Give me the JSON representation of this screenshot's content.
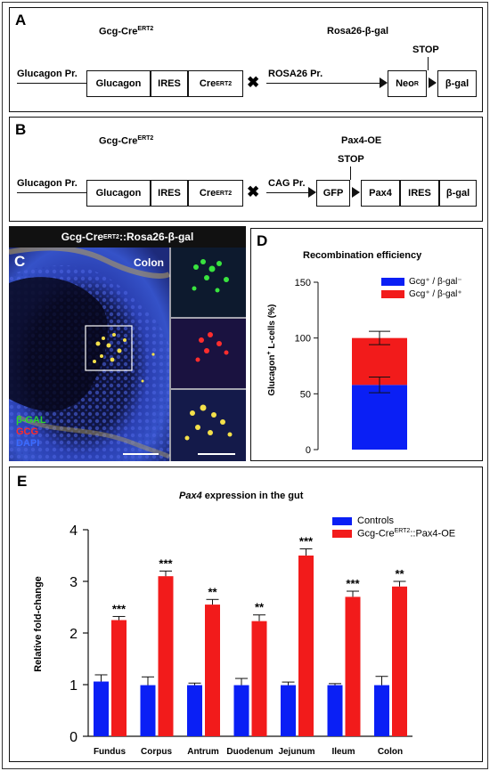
{
  "panelA": {
    "label": "A",
    "title_left_main": "Gcg-Cre",
    "title_left_sup": "ERT2",
    "title_right": "Rosa26-β-gal",
    "promoter1": "Glucagon Pr.",
    "box_glucagon": "Glucagon",
    "box_ires": "IRES",
    "box_cre": "Cre",
    "box_cre_sup": "ERT2",
    "promoter2": "ROSA26 Pr.",
    "stop": "STOP",
    "box_neo": "Neo",
    "box_neo_sup": "R",
    "box_bgal": "β-gal"
  },
  "panelB": {
    "label": "B",
    "title_left_main": "Gcg-Cre",
    "title_left_sup": "ERT2",
    "title_right": "Pax4-OE",
    "promoter1": "Glucagon Pr.",
    "box_glucagon": "Glucagon",
    "box_ires": "IRES",
    "box_cre": "Cre",
    "box_cre_sup": "ERT2",
    "promoter2": "CAG Pr.",
    "stop": "STOP",
    "box_gfp": "GFP",
    "box_pax4": "Pax4",
    "box_ires2": "IRES",
    "box_bgal": "β-gal"
  },
  "panelC": {
    "label": "C",
    "header_main": "Gcg-Cre",
    "header_sup": "ERT2",
    "header_rest": "::Rosa26-β-gal",
    "tissue": "Colon",
    "legend": [
      "β-GAL",
      "GCG",
      "DAPI"
    ],
    "legend_colors": [
      "#2bd52b",
      "#ff2a2a",
      "#3a6bff"
    ]
  },
  "panelD": {
    "label": "D",
    "title": "Recombination efficiency",
    "ylabel_main": "Glucagon",
    "ylabel_sup": "+",
    "ylabel_rest": " L-cells (%)",
    "legend": [
      "Gcg⁺ / β-gal⁻",
      "Gcg⁺ / β-gal⁺"
    ],
    "colors": [
      "#0a1ff5",
      "#f21b1b"
    ]
  },
  "panelE": {
    "label": "E",
    "title_italic": "Pax4",
    "title_rest": " expression in the gut",
    "ylabel": "Relative fold-change",
    "legend_controls": "Controls",
    "legend_oe_main": "Gcg-Cre",
    "legend_oe_sup": "ERT2",
    "legend_oe_rest": "::Pax4-OE",
    "colors": [
      "#0a1ff5",
      "#f21b1b"
    ]
  },
  "chart_data": [
    {
      "type": "bar",
      "title": "Recombination efficiency",
      "ylabel": "Glucagon+ L-cells (%)",
      "ylim": [
        0,
        150
      ],
      "yticks": [
        0,
        50,
        100,
        150
      ],
      "stacked": true,
      "series": [
        {
          "name": "Gcg⁺ / β-gal⁻",
          "values": [
            58
          ],
          "error": [
            7
          ]
        },
        {
          "name": "Gcg⁺ / β-gal⁺",
          "values": [
            42
          ],
          "error": [
            6
          ]
        }
      ],
      "legend": "top-right"
    },
    {
      "type": "bar",
      "title": "Pax4 expression in the gut",
      "ylabel": "Relative fold-change",
      "ylim": [
        0,
        4
      ],
      "yticks": [
        0,
        1,
        2,
        3,
        4
      ],
      "categories": [
        "Fundus",
        "Corpus",
        "Antrum",
        "Duodenum",
        "Jejunum",
        "Ileum",
        "Colon"
      ],
      "series": [
        {
          "name": "Controls",
          "values": [
            1.06,
            0.99,
            0.99,
            0.99,
            0.99,
            0.99,
            0.99
          ],
          "error": [
            0.13,
            0.16,
            0.04,
            0.13,
            0.06,
            0.03,
            0.17
          ]
        },
        {
          "name": "Gcg-CreERT2::Pax4-OE",
          "values": [
            2.25,
            3.1,
            2.55,
            2.23,
            3.5,
            2.7,
            2.9
          ],
          "error": [
            0.07,
            0.1,
            0.1,
            0.12,
            0.13,
            0.11,
            0.1
          ]
        }
      ],
      "significance": [
        "***",
        "***",
        "**",
        "**",
        "***",
        "***",
        "**"
      ],
      "legend": "top-right"
    }
  ]
}
